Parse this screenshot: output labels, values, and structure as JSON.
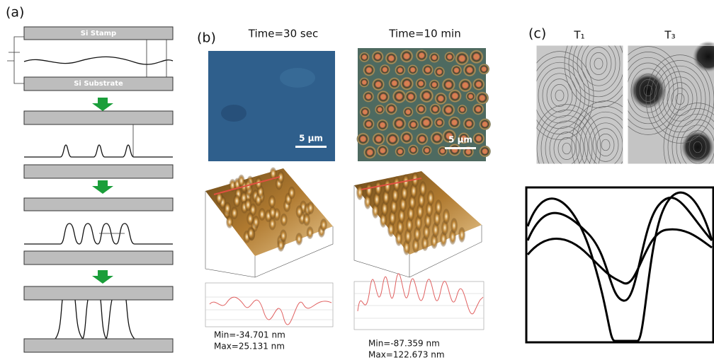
{
  "panel_a": {
    "label": "(a)",
    "stamp": "Si Stamp",
    "substrate": "Si Substrate"
  },
  "panel_b": {
    "label": "(b)",
    "columns": [
      {
        "title": "Time=30 sec",
        "scale": "5 µm",
        "min": "Min=-34.701 nm",
        "max": "Max=25.131 nm"
      },
      {
        "title": "Time=10 min",
        "scale": "5 µm",
        "min": "Min=-87.359 nm",
        "max": "Max=122.673 nm"
      }
    ]
  },
  "panel_c": {
    "label": "(c)",
    "images": [
      "T₁",
      "T₃"
    ]
  }
}
